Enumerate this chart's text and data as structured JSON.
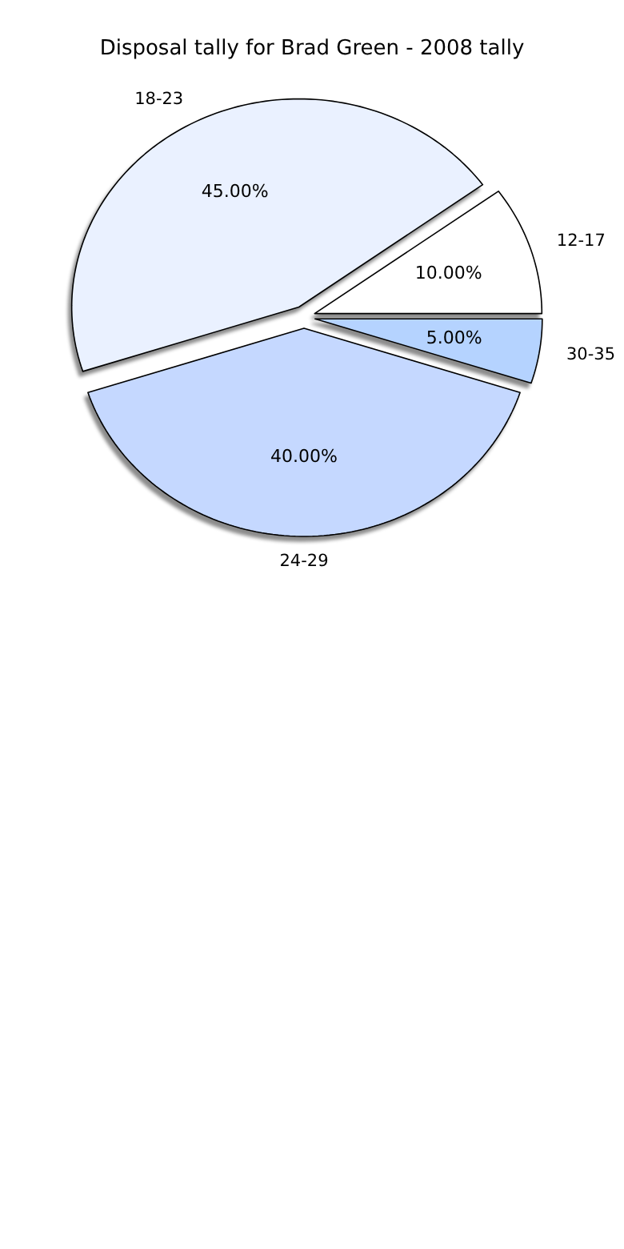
{
  "chart_data": {
    "type": "pie",
    "title": "Disposal tally for Brad Green - 2008 tally",
    "categories": [
      "12-17",
      "18-23",
      "24-29",
      "30-35"
    ],
    "values": [
      10,
      45,
      40,
      5
    ],
    "colors": [
      "#ffffff",
      "#eaf1ff",
      "#c5d8ff",
      "#b5d3ff"
    ],
    "value_labels": [
      "10.00%",
      "45.00%",
      "40.00%",
      "5.00%"
    ]
  }
}
